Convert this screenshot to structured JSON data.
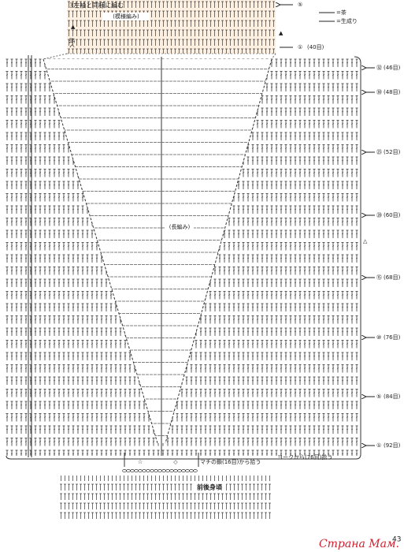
{
  "header": {
    "instruction": "3左袖と同様に編む",
    "continue": "続く",
    "pattern_label": "(模様編み)",
    "top_row": "⑤",
    "first_row": "①",
    "first_count": "(40目)"
  },
  "legend": [
    {
      "label": "=茶"
    },
    {
      "label": "=生成り"
    }
  ],
  "rows": [
    {
      "mark": "㉜",
      "count": "(46目)"
    },
    {
      "mark": "㉚",
      "count": "(48目)"
    },
    {
      "mark": "㉕",
      "count": "(52目)"
    },
    {
      "mark": "⑳",
      "count": "(60目)"
    },
    {
      "mark": "⑮",
      "count": "(68目)"
    },
    {
      "mark": "⑩",
      "count": "(76目)"
    },
    {
      "mark": "⑤",
      "count": "(84目)"
    },
    {
      "mark": "①",
      "count": "(92目)"
    }
  ],
  "body_label": "(長編み)",
  "pickup": {
    "star": "☆",
    "diamond": "◇",
    "gusset": "マチの鎖(16目)から拾う",
    "yoke": "ヨークから(76目)拾う"
  },
  "section_label": "前後身頃",
  "page_number": "43",
  "watermark": "Страна Мам."
}
